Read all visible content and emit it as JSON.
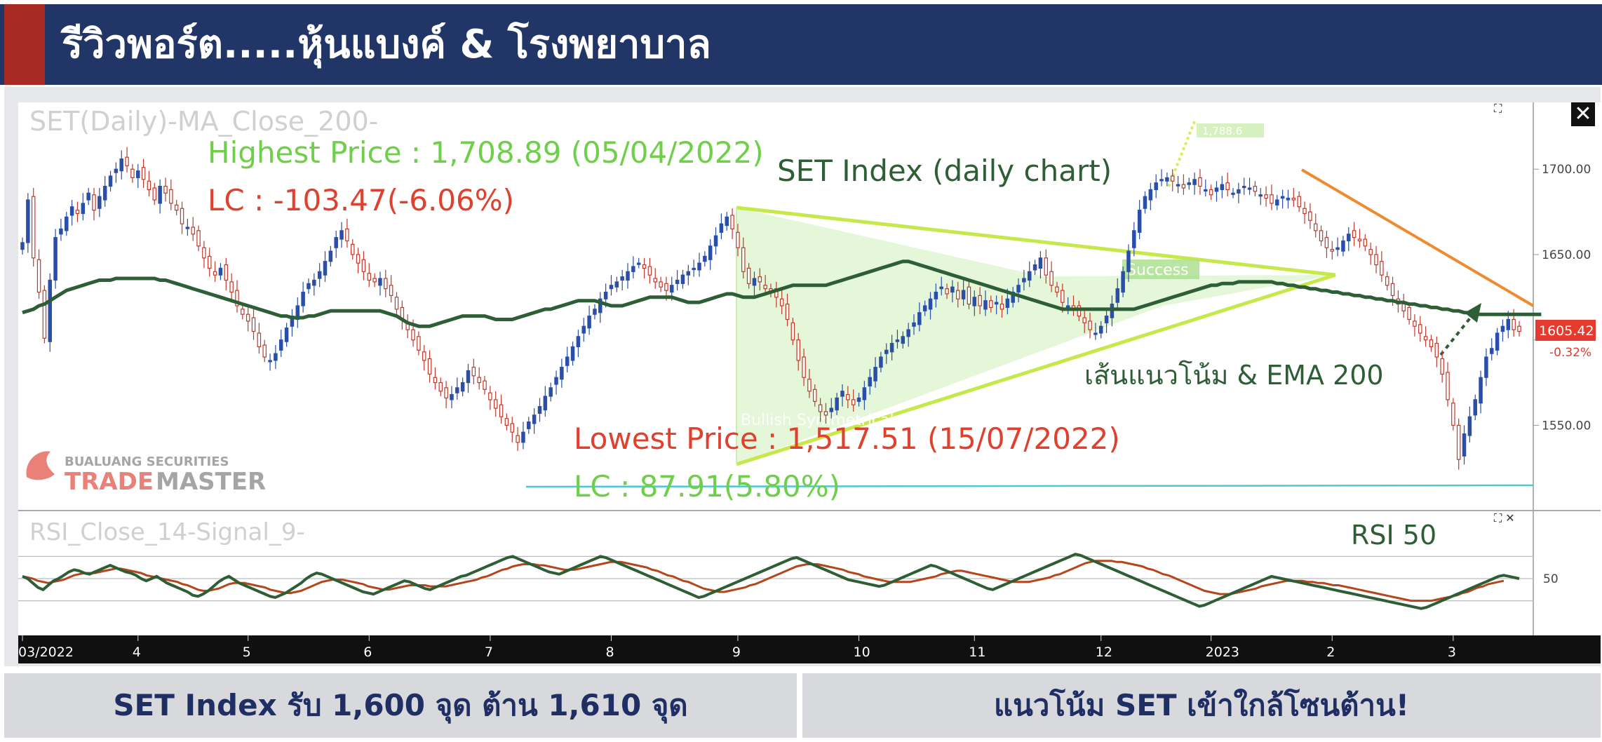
{
  "header": {
    "title": "รีวิวพอร์ต.....หุ้นแบงค์ & โรงพยาบาล"
  },
  "footer": {
    "left_text": "SET Index รับ 1,600 จุด ต้าน 1,610 จุด",
    "right_text": "แนวโน้ม SET เข้าใกล้โซนต้าน!"
  },
  "watermark": {
    "line1": "BUALUANG SECURITIES",
    "line2_a": "TRADE",
    "line2_b": "MASTER"
  },
  "chart_data": [
    {
      "type": "line",
      "panel": "price",
      "legend_text": "SET(Daily)-MA_Close_200-",
      "title": "SET Index (daily chart)",
      "annotations": {
        "highest": "Highest Price : 1,708.89 (05/04/2022)",
        "highest_lc": "LC : -103.47(-6.06%)",
        "lowest": "Lowest Price : 1,517.51 (15/07/2022)",
        "lowest_lc": "LC : 87.91(5.80%)",
        "trend_label": "เส้นแนวโน้ม & EMA 200",
        "pattern_label": "Bullish Symmetrical",
        "success_label": "Success",
        "target_label": "1,788.6"
      },
      "y_ticks": [
        1550,
        1600,
        1650,
        1700
      ],
      "y_tick_labels": [
        "1550.00",
        "",
        "1650.00",
        "1700.00"
      ],
      "ylim": [
        1505,
        1735
      ],
      "last_price": "1605.42",
      "last_change": "-0.32%",
      "x_tick_labels": [
        "03/2022",
        "4",
        "5",
        "6",
        "7",
        "8",
        "9",
        "10",
        "11",
        "12",
        "2023",
        "2",
        "3"
      ],
      "x_tick_index": [
        0,
        21,
        41,
        63,
        85,
        107,
        130,
        152,
        173,
        196,
        216,
        238,
        260
      ],
      "close_series": [
        1657,
        1682,
        1648,
        1628,
        1601,
        1635,
        1660,
        1665,
        1672,
        1678,
        1674,
        1680,
        1686,
        1676,
        1684,
        1690,
        1696,
        1700,
        1706,
        1702,
        1695,
        1699,
        1694,
        1688,
        1682,
        1690,
        1686,
        1680,
        1676,
        1668,
        1666,
        1662,
        1655,
        1648,
        1642,
        1638,
        1642,
        1635,
        1628,
        1620,
        1615,
        1611,
        1605,
        1596,
        1590,
        1588,
        1592,
        1600,
        1607,
        1614,
        1620,
        1628,
        1633,
        1635,
        1640,
        1646,
        1652,
        1660,
        1664,
        1658,
        1650,
        1645,
        1640,
        1635,
        1634,
        1636,
        1630,
        1626,
        1618,
        1612,
        1606,
        1600,
        1594,
        1588,
        1580,
        1575,
        1570,
        1566,
        1568,
        1572,
        1575,
        1582,
        1579,
        1575,
        1571,
        1565,
        1560,
        1555,
        1550,
        1546,
        1540,
        1546,
        1552,
        1556,
        1561,
        1567,
        1572,
        1578,
        1584,
        1590,
        1596,
        1602,
        1608,
        1614,
        1618,
        1624,
        1628,
        1632,
        1634,
        1637,
        1640,
        1643,
        1645,
        1642,
        1638,
        1634,
        1631,
        1629,
        1632,
        1635,
        1638,
        1640,
        1642,
        1645,
        1649,
        1655,
        1661,
        1668,
        1672,
        1665,
        1654,
        1640,
        1633,
        1636,
        1634,
        1630,
        1628,
        1625,
        1620,
        1612,
        1600,
        1588,
        1578,
        1570,
        1564,
        1558,
        1556,
        1560,
        1566,
        1570,
        1565,
        1562,
        1566,
        1572,
        1578,
        1584,
        1590,
        1594,
        1598,
        1600,
        1602,
        1606,
        1610,
        1616,
        1620,
        1624,
        1628,
        1631,
        1627,
        1631,
        1624,
        1629,
        1621,
        1625,
        1620,
        1623,
        1619,
        1622,
        1618,
        1624,
        1628,
        1632,
        1636,
        1640,
        1644,
        1648,
        1638,
        1632,
        1628,
        1622,
        1620,
        1618,
        1614,
        1610,
        1606,
        1604,
        1608,
        1614,
        1621,
        1630,
        1640,
        1652,
        1664,
        1676,
        1684,
        1688,
        1692,
        1694,
        1695,
        1693,
        1691,
        1689,
        1692,
        1694,
        1690,
        1688,
        1685,
        1689,
        1691,
        1688,
        1686,
        1688,
        1690,
        1689,
        1687,
        1685,
        1683,
        1680,
        1682,
        1684,
        1683,
        1682,
        1678,
        1674,
        1670,
        1664,
        1658,
        1654,
        1652,
        1654,
        1658,
        1662,
        1660,
        1658,
        1655,
        1650,
        1644,
        1638,
        1632,
        1626,
        1621,
        1617,
        1612,
        1608,
        1604,
        1600,
        1596,
        1590,
        1580,
        1565,
        1550,
        1530,
        1545,
        1555,
        1565,
        1578,
        1590,
        1595,
        1604,
        1608,
        1612,
        1606,
        1605
      ],
      "ma200_series": [
        1616,
        1617,
        1618,
        1620,
        1621,
        1623,
        1625,
        1627,
        1629,
        1630,
        1631,
        1632,
        1633,
        1634,
        1635,
        1635,
        1635,
        1636,
        1636,
        1636,
        1636,
        1636,
        1636,
        1636,
        1636,
        1635,
        1635,
        1634,
        1633,
        1632,
        1631,
        1630,
        1629,
        1628,
        1627,
        1626,
        1625,
        1624,
        1623,
        1622,
        1621,
        1620,
        1619,
        1618,
        1617,
        1616,
        1615,
        1614,
        1614,
        1613,
        1613,
        1613,
        1614,
        1614,
        1615,
        1616,
        1617,
        1617,
        1617,
        1617,
        1617,
        1617,
        1617,
        1617,
        1617,
        1617,
        1616,
        1615,
        1614,
        1612,
        1610,
        1609,
        1608,
        1608,
        1608,
        1609,
        1610,
        1611,
        1612,
        1613,
        1614,
        1614,
        1614,
        1614,
        1614,
        1613,
        1612,
        1612,
        1612,
        1612,
        1613,
        1614,
        1615,
        1616,
        1617,
        1618,
        1618,
        1619,
        1620,
        1621,
        1622,
        1623,
        1623,
        1623,
        1623,
        1622,
        1621,
        1620,
        1620,
        1620,
        1621,
        1622,
        1623,
        1624,
        1625,
        1625,
        1625,
        1625,
        1625,
        1624,
        1623,
        1622,
        1622,
        1622,
        1623,
        1624,
        1625,
        1626,
        1627,
        1627,
        1626,
        1625,
        1625,
        1625,
        1626,
        1627,
        1628,
        1629,
        1630,
        1631,
        1632,
        1632,
        1632,
        1632,
        1632,
        1632,
        1632,
        1633,
        1634,
        1635,
        1636,
        1637,
        1638,
        1639,
        1640,
        1641,
        1642,
        1643,
        1644,
        1645,
        1646,
        1646,
        1645,
        1644,
        1643,
        1642,
        1641,
        1640,
        1639,
        1638,
        1637,
        1636,
        1635,
        1634,
        1633,
        1632,
        1631,
        1630,
        1629,
        1628,
        1627,
        1626,
        1625,
        1624,
        1623,
        1622,
        1621,
        1620,
        1619,
        1618,
        1618,
        1618,
        1618,
        1618,
        1618,
        1618,
        1618,
        1618,
        1618,
        1618,
        1618,
        1618,
        1618,
        1619,
        1620,
        1621,
        1622,
        1623,
        1624,
        1625,
        1626,
        1627,
        1628,
        1629,
        1630,
        1631,
        1632,
        1632,
        1633,
        1633,
        1633,
        1634,
        1634,
        1634,
        1634,
        1634,
        1634,
        1634,
        1633,
        1633,
        1632,
        1632,
        1631,
        1631,
        1630,
        1630,
        1629,
        1629,
        1628,
        1628,
        1627,
        1627,
        1626,
        1626,
        1625,
        1625,
        1624,
        1624,
        1623,
        1623,
        1622,
        1622,
        1621,
        1621,
        1620,
        1620,
        1619,
        1619,
        1618,
        1618,
        1617,
        1617,
        1616,
        1616,
        1615,
        1615,
        1615,
        1615,
        1615,
        1615,
        1615,
        1615,
        1615,
        1615,
        1615,
        1615,
        1615
      ],
      "ema_color": "#2e5e35",
      "up_color": "#2a4fa8",
      "down_color": "#c0392b"
    },
    {
      "type": "line",
      "panel": "rsi",
      "legend_text": "RSI_Close_14-Signal_9-",
      "title": "RSI 50",
      "ylim": [
        0,
        100
      ],
      "y_ticks": [
        30,
        50,
        70
      ],
      "y_tick_labels": [
        "",
        "50",
        ""
      ],
      "rsi_series": [
        52,
        50,
        46,
        42,
        40,
        44,
        48,
        50,
        53,
        56,
        58,
        57,
        55,
        54,
        56,
        58,
        60,
        62,
        60,
        58,
        56,
        55,
        53,
        50,
        48,
        50,
        52,
        49,
        46,
        44,
        42,
        40,
        38,
        35,
        34,
        36,
        39,
        43,
        47,
        50,
        52,
        49,
        46,
        44,
        42,
        40,
        38,
        36,
        34,
        33,
        35,
        37,
        40,
        43,
        46,
        50,
        53,
        55,
        54,
        52,
        50,
        48,
        46,
        44,
        42,
        40,
        38,
        37,
        36,
        38,
        40,
        42,
        44,
        46,
        48,
        47,
        45,
        43,
        41,
        40,
        42,
        44,
        46,
        48,
        50,
        52,
        53,
        55,
        57,
        59,
        61,
        63,
        65,
        67,
        69,
        70,
        68,
        66,
        64,
        62,
        60,
        58,
        56,
        55,
        54,
        56,
        58,
        60,
        62,
        64,
        66,
        68,
        70,
        69,
        67,
        65,
        63,
        61,
        59,
        57,
        55,
        53,
        51,
        49,
        47,
        45,
        43,
        41,
        39,
        37,
        35,
        33,
        34,
        36,
        38,
        40,
        42,
        44,
        46,
        48,
        50,
        52,
        54,
        56,
        58,
        60,
        62,
        64,
        66,
        68,
        69,
        67,
        65,
        63,
        61,
        59,
        57,
        55,
        53,
        51,
        49,
        48,
        47,
        46,
        45,
        44,
        43,
        44,
        46,
        48,
        50,
        52,
        54,
        56,
        58,
        60,
        62,
        61,
        59,
        57,
        55,
        53,
        51,
        49,
        47,
        45,
        43,
        41,
        40,
        42,
        44,
        46,
        48,
        50,
        52,
        54,
        56,
        58,
        60,
        62,
        64,
        66,
        68,
        70,
        72,
        71,
        69,
        67,
        65,
        63,
        61,
        59,
        57,
        55,
        53,
        51,
        49,
        47,
        45,
        43,
        41,
        39,
        37,
        35,
        33,
        31,
        29,
        27,
        25,
        26,
        28,
        30,
        32,
        34,
        36,
        38,
        40,
        42,
        44,
        46,
        48,
        50,
        52,
        51,
        50,
        49,
        48,
        47,
        46,
        45,
        44,
        43,
        42,
        41,
        40,
        39,
        38,
        37,
        36,
        35,
        34,
        33,
        32,
        31,
        30,
        29,
        28,
        27,
        26,
        25,
        24,
        23,
        24,
        26,
        28,
        30,
        32,
        34,
        36,
        38,
        40,
        42,
        44,
        46,
        48,
        50,
        52,
        53,
        52,
        51,
        50
      ],
      "signal_series": [
        52,
        51,
        50,
        48,
        47,
        46,
        47,
        48,
        49,
        51,
        53,
        54,
        55,
        55,
        55,
        56,
        57,
        58,
        59,
        59,
        58,
        57,
        56,
        55,
        53,
        52,
        51,
        50,
        49,
        48,
        47,
        45,
        44,
        42,
        40,
        39,
        39,
        40,
        41,
        43,
        45,
        46,
        46,
        46,
        45,
        44,
        43,
        42,
        40,
        39,
        38,
        37,
        37,
        38,
        39,
        41,
        43,
        45,
        47,
        48,
        49,
        49,
        49,
        48,
        47,
        46,
        45,
        43,
        42,
        41,
        40,
        40,
        41,
        42,
        43,
        44,
        44,
        44,
        44,
        43,
        43,
        43,
        43,
        44,
        45,
        46,
        47,
        48,
        49,
        51,
        52,
        54,
        56,
        58,
        59,
        61,
        62,
        63,
        63,
        63,
        62,
        62,
        61,
        60,
        59,
        58,
        58,
        58,
        59,
        60,
        61,
        62,
        63,
        64,
        65,
        65,
        65,
        64,
        63,
        62,
        61,
        60,
        58,
        57,
        55,
        53,
        52,
        50,
        48,
        47,
        45,
        43,
        41,
        40,
        39,
        38,
        38,
        39,
        40,
        41,
        42,
        44,
        45,
        47,
        49,
        51,
        53,
        55,
        57,
        59,
        61,
        62,
        63,
        63,
        63,
        62,
        61,
        60,
        59,
        58,
        56,
        55,
        54,
        52,
        51,
        50,
        49,
        48,
        47,
        47,
        47,
        47,
        47,
        48,
        49,
        50,
        51,
        52,
        54,
        55,
        56,
        57,
        57,
        56,
        55,
        54,
        53,
        52,
        51,
        50,
        49,
        48,
        47,
        47,
        47,
        47,
        48,
        49,
        50,
        51,
        53,
        54,
        56,
        58,
        60,
        62,
        64,
        65,
        66,
        66,
        66,
        66,
        65,
        65,
        64,
        63,
        62,
        61,
        59,
        58,
        56,
        54,
        53,
        51,
        49,
        47,
        45,
        43,
        41,
        39,
        38,
        37,
        36,
        36,
        36,
        37,
        38,
        39,
        40,
        41,
        43,
        44,
        45,
        46,
        47,
        48,
        48,
        48,
        48,
        47,
        47,
        46,
        46,
        45,
        44,
        44,
        43,
        42,
        41,
        40,
        39,
        38,
        37,
        36,
        35,
        34,
        33,
        32,
        31,
        30,
        30,
        30,
        30,
        30,
        31,
        32,
        33,
        34,
        35,
        37,
        38,
        40,
        42,
        43,
        45,
        46,
        47,
        48
      ],
      "rsi_color": "#2e5e35",
      "signal_color": "#b5451b"
    }
  ]
}
